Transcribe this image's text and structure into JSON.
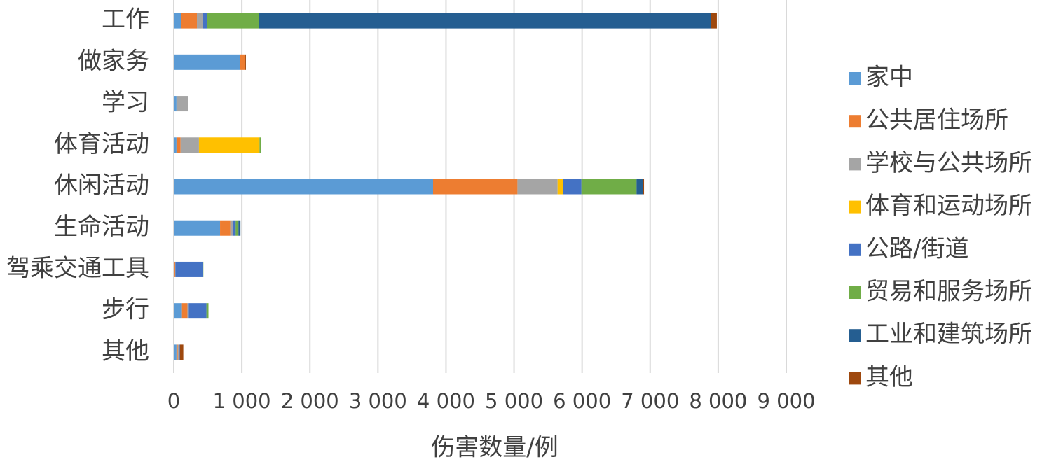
{
  "chart_data": {
    "type": "stacked-barh",
    "x_label": "伤害数量/例",
    "categories": [
      "工作",
      "做家务",
      "学习",
      "体育活动",
      "休闲活动",
      "生命活动",
      "驾乘交通工具",
      "步行",
      "其他"
    ],
    "series": [
      {
        "name": "家中",
        "color": "#5b9bd5",
        "values": [
          110,
          970,
          40,
          40,
          3810,
          680,
          10,
          120,
          40
        ]
      },
      {
        "name": "公共居住场所",
        "color": "#ed7d31",
        "values": [
          230,
          80,
          0,
          60,
          1240,
          150,
          10,
          80,
          20
        ]
      },
      {
        "name": "学校与公共场所",
        "color": "#a5a5a5",
        "values": [
          90,
          0,
          170,
          270,
          590,
          40,
          5,
          20,
          20
        ]
      },
      {
        "name": "体育和运动场所",
        "color": "#ffc000",
        "values": [
          0,
          0,
          0,
          890,
          80,
          0,
          0,
          0,
          0
        ]
      },
      {
        "name": "公路/街道",
        "color": "#4472c4",
        "values": [
          60,
          0,
          0,
          0,
          270,
          40,
          400,
          260,
          10
        ]
      },
      {
        "name": "贸易和服务场所",
        "color": "#70ad47",
        "values": [
          760,
          0,
          0,
          20,
          810,
          40,
          10,
          30,
          0
        ]
      },
      {
        "name": "工业和建筑场所",
        "color": "#255e91",
        "values": [
          6640,
          0,
          0,
          0,
          90,
          30,
          0,
          0,
          0
        ]
      },
      {
        "name": "其他",
        "color": "#9e480e",
        "values": [
          90,
          10,
          0,
          0,
          20,
          0,
          0,
          0,
          50
        ]
      }
    ],
    "xlim": [
      0,
      9000
    ],
    "xticks": [
      0,
      {
        "value": 1000,
        "label": "1 000"
      },
      {
        "value": 2000,
        "label": "2 000"
      },
      {
        "value": 3000,
        "label": "3 000"
      },
      {
        "value": 4000,
        "label": "4 000"
      },
      {
        "value": 5000,
        "label": "5 000"
      },
      {
        "value": 6000,
        "label": "6 000"
      },
      {
        "value": 7000,
        "label": "7 000"
      },
      {
        "value": 8000,
        "label": "8 000"
      },
      {
        "value": 9000,
        "label": "9 000"
      }
    ],
    "grid": true,
    "legend": "right"
  }
}
